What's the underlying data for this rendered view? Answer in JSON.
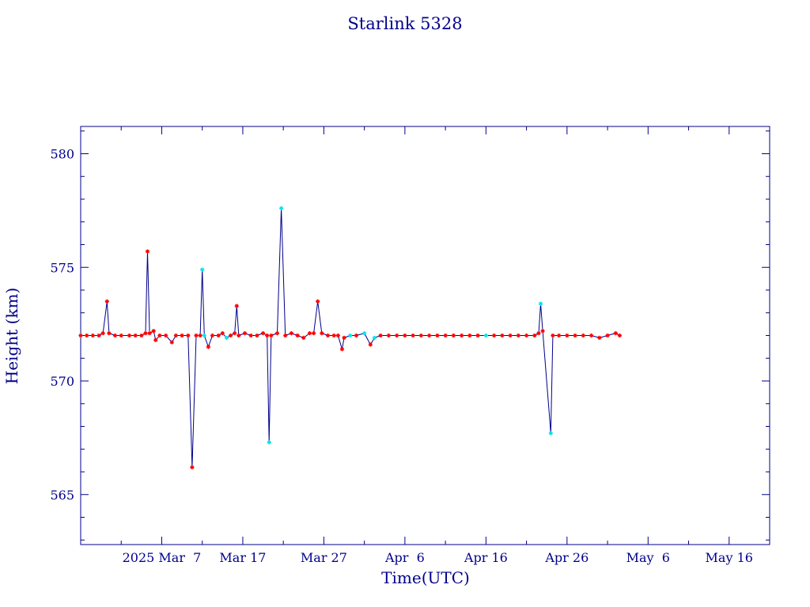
{
  "chart_data": {
    "type": "line",
    "title": "Starlink 5328",
    "xlabel": "Time(UTC)",
    "ylabel": "Height (km)",
    "x_start": "2025-02-25",
    "x_end": "2025-05-21",
    "ylim": [
      562.8,
      581.2
    ],
    "x_ticks": [
      {
        "label": "2025 Mar  7",
        "date": "2025-03-07"
      },
      {
        "label": "Mar 17",
        "date": "2025-03-17"
      },
      {
        "label": "Mar 27",
        "date": "2025-03-27"
      },
      {
        "label": "Apr  6",
        "date": "2025-04-06"
      },
      {
        "label": "Apr 16",
        "date": "2025-04-16"
      },
      {
        "label": "Apr 26",
        "date": "2025-04-26"
      },
      {
        "label": "May  6",
        "date": "2025-05-06"
      },
      {
        "label": "May 16",
        "date": "2025-05-16"
      }
    ],
    "y_ticks": [
      565,
      570,
      575,
      580
    ],
    "grid": false,
    "colors": {
      "axis": "#00008b",
      "line": "#00008b",
      "marker_a": "#ff0000",
      "marker_b": "#00e5ee"
    },
    "series": [
      {
        "points": [
          {
            "date": "2025-02-25T00:00",
            "h": 572.0,
            "m": "a"
          },
          {
            "date": "2025-02-25T18:00",
            "h": 572.0,
            "m": "a"
          },
          {
            "date": "2025-02-26T12:00",
            "h": 572.0,
            "m": "a"
          },
          {
            "date": "2025-02-27T06:00",
            "h": 572.0,
            "m": "a"
          },
          {
            "date": "2025-02-27T18:00",
            "h": 572.1,
            "m": "a"
          },
          {
            "date": "2025-02-28T06:00",
            "h": 573.5,
            "m": "a"
          },
          {
            "date": "2025-02-28T12:00",
            "h": 572.1,
            "m": "a"
          },
          {
            "date": "2025-03-01T06:00",
            "h": 572.0,
            "m": "a"
          },
          {
            "date": "2025-03-02T00:00",
            "h": 572.0,
            "m": "a"
          },
          {
            "date": "2025-03-03T00:00",
            "h": 572.0,
            "m": "a"
          },
          {
            "date": "2025-03-03T18:00",
            "h": 572.0,
            "m": "a"
          },
          {
            "date": "2025-03-04T12:00",
            "h": 572.0,
            "m": "a"
          },
          {
            "date": "2025-03-05T00:00",
            "h": 572.1,
            "m": "a"
          },
          {
            "date": "2025-03-05T06:00",
            "h": 575.7,
            "m": "a"
          },
          {
            "date": "2025-03-05T12:00",
            "h": 572.1,
            "m": "a"
          },
          {
            "date": "2025-03-06T00:00",
            "h": 572.2,
            "m": "a"
          },
          {
            "date": "2025-03-06T06:00",
            "h": 571.8,
            "m": "a"
          },
          {
            "date": "2025-03-06T18:00",
            "h": 572.0,
            "m": "a"
          },
          {
            "date": "2025-03-07T12:00",
            "h": 572.0,
            "m": "a"
          },
          {
            "date": "2025-03-08T06:00",
            "h": 571.7,
            "m": "a"
          },
          {
            "date": "2025-03-08T18:00",
            "h": 572.0,
            "m": "a"
          },
          {
            "date": "2025-03-09T12:00",
            "h": 572.0,
            "m": "a"
          },
          {
            "date": "2025-03-10T06:00",
            "h": 572.0,
            "m": "a"
          },
          {
            "date": "2025-03-10T18:00",
            "h": 566.2,
            "m": "a"
          },
          {
            "date": "2025-03-11T06:00",
            "h": 572.0,
            "m": "a"
          },
          {
            "date": "2025-03-11T18:00",
            "h": 572.0,
            "m": "a"
          },
          {
            "date": "2025-03-12T00:00",
            "h": 574.9,
            "m": "b"
          },
          {
            "date": "2025-03-12T06:00",
            "h": 572.0,
            "m": "b"
          },
          {
            "date": "2025-03-12T18:00",
            "h": 571.5,
            "m": "a"
          },
          {
            "date": "2025-03-13T06:00",
            "h": 572.0,
            "m": "a"
          },
          {
            "date": "2025-03-14T00:00",
            "h": 572.0,
            "m": "a"
          },
          {
            "date": "2025-03-14T12:00",
            "h": 572.1,
            "m": "a"
          },
          {
            "date": "2025-03-15T00:00",
            "h": 571.9,
            "m": "b"
          },
          {
            "date": "2025-03-15T12:00",
            "h": 572.0,
            "m": "a"
          },
          {
            "date": "2025-03-16T00:00",
            "h": 572.1,
            "m": "a"
          },
          {
            "date": "2025-03-16T06:00",
            "h": 573.3,
            "m": "a"
          },
          {
            "date": "2025-03-16T12:00",
            "h": 572.0,
            "m": "a"
          },
          {
            "date": "2025-03-17T06:00",
            "h": 572.1,
            "m": "a"
          },
          {
            "date": "2025-03-18T00:00",
            "h": 572.0,
            "m": "a"
          },
          {
            "date": "2025-03-18T18:00",
            "h": 572.0,
            "m": "a"
          },
          {
            "date": "2025-03-19T12:00",
            "h": 572.1,
            "m": "a"
          },
          {
            "date": "2025-03-20T00:00",
            "h": 572.0,
            "m": "a"
          },
          {
            "date": "2025-03-20T06:00",
            "h": 567.3,
            "m": "b"
          },
          {
            "date": "2025-03-20T12:00",
            "h": 572.0,
            "m": "a"
          },
          {
            "date": "2025-03-21T06:00",
            "h": 572.1,
            "m": "a"
          },
          {
            "date": "2025-03-21T18:00",
            "h": 577.6,
            "m": "b"
          },
          {
            "date": "2025-03-22T06:00",
            "h": 572.0,
            "m": "a"
          },
          {
            "date": "2025-03-23T00:00",
            "h": 572.1,
            "m": "a"
          },
          {
            "date": "2025-03-23T18:00",
            "h": 572.0,
            "m": "a"
          },
          {
            "date": "2025-03-24T12:00",
            "h": 571.9,
            "m": "a"
          },
          {
            "date": "2025-03-25T06:00",
            "h": 572.1,
            "m": "a"
          },
          {
            "date": "2025-03-25T18:00",
            "h": 572.1,
            "m": "a"
          },
          {
            "date": "2025-03-26T06:00",
            "h": 573.5,
            "m": "a"
          },
          {
            "date": "2025-03-26T18:00",
            "h": 572.1,
            "m": "a"
          },
          {
            "date": "2025-03-27T12:00",
            "h": 572.0,
            "m": "a"
          },
          {
            "date": "2025-03-28T06:00",
            "h": 572.0,
            "m": "a"
          },
          {
            "date": "2025-03-28T18:00",
            "h": 572.0,
            "m": "a"
          },
          {
            "date": "2025-03-29T06:00",
            "h": 571.4,
            "m": "a"
          },
          {
            "date": "2025-03-29T12:00",
            "h": 571.9,
            "m": "a"
          },
          {
            "date": "2025-03-30T06:00",
            "h": 572.0,
            "m": "b"
          },
          {
            "date": "2025-03-31T00:00",
            "h": 572.0,
            "m": "a"
          },
          {
            "date": "2025-04-01T00:00",
            "h": 572.1,
            "m": "b"
          },
          {
            "date": "2025-04-01T18:00",
            "h": 571.6,
            "m": "a"
          },
          {
            "date": "2025-04-02T06:00",
            "h": 571.9,
            "m": "b"
          },
          {
            "date": "2025-04-03T00:00",
            "h": 572.0,
            "m": "a"
          },
          {
            "date": "2025-04-04T00:00",
            "h": 572.0,
            "m": "a"
          },
          {
            "date": "2025-04-05T00:00",
            "h": 572.0,
            "m": "a"
          },
          {
            "date": "2025-04-06T00:00",
            "h": 572.0,
            "m": "a"
          },
          {
            "date": "2025-04-07T00:00",
            "h": 572.0,
            "m": "a"
          },
          {
            "date": "2025-04-08T00:00",
            "h": 572.0,
            "m": "a"
          },
          {
            "date": "2025-04-09T00:00",
            "h": 572.0,
            "m": "a"
          },
          {
            "date": "2025-04-10T00:00",
            "h": 572.0,
            "m": "a"
          },
          {
            "date": "2025-04-11T00:00",
            "h": 572.0,
            "m": "a"
          },
          {
            "date": "2025-04-12T00:00",
            "h": 572.0,
            "m": "a"
          },
          {
            "date": "2025-04-13T00:00",
            "h": 572.0,
            "m": "a"
          },
          {
            "date": "2025-04-14T00:00",
            "h": 572.0,
            "m": "a"
          },
          {
            "date": "2025-04-15T00:00",
            "h": 572.0,
            "m": "a"
          },
          {
            "date": "2025-04-16T00:00",
            "h": 572.0,
            "m": "b"
          },
          {
            "date": "2025-04-17T00:00",
            "h": 572.0,
            "m": "a"
          },
          {
            "date": "2025-04-18T00:00",
            "h": 572.0,
            "m": "a"
          },
          {
            "date": "2025-04-19T00:00",
            "h": 572.0,
            "m": "a"
          },
          {
            "date": "2025-04-20T00:00",
            "h": 572.0,
            "m": "a"
          },
          {
            "date": "2025-04-21T00:00",
            "h": 572.0,
            "m": "a"
          },
          {
            "date": "2025-04-22T00:00",
            "h": 572.0,
            "m": "a"
          },
          {
            "date": "2025-04-22T12:00",
            "h": 572.1,
            "m": "a"
          },
          {
            "date": "2025-04-22T18:00",
            "h": 573.4,
            "m": "b"
          },
          {
            "date": "2025-04-23T00:00",
            "h": 572.2,
            "m": "a"
          },
          {
            "date": "2025-04-24T00:00",
            "h": 567.7,
            "m": "b"
          },
          {
            "date": "2025-04-24T06:00",
            "h": 572.0,
            "m": "a"
          },
          {
            "date": "2025-04-25T00:00",
            "h": 572.0,
            "m": "a"
          },
          {
            "date": "2025-04-26T00:00",
            "h": 572.0,
            "m": "a"
          },
          {
            "date": "2025-04-27T00:00",
            "h": 572.0,
            "m": "a"
          },
          {
            "date": "2025-04-28T00:00",
            "h": 572.0,
            "m": "a"
          },
          {
            "date": "2025-04-29T00:00",
            "h": 572.0,
            "m": "a"
          },
          {
            "date": "2025-04-30T00:00",
            "h": 571.9,
            "m": "a"
          },
          {
            "date": "2025-05-01T00:00",
            "h": 572.0,
            "m": "a"
          },
          {
            "date": "2025-05-02T00:00",
            "h": 572.1,
            "m": "a"
          },
          {
            "date": "2025-05-02T12:00",
            "h": 572.0,
            "m": "a"
          }
        ]
      }
    ]
  }
}
